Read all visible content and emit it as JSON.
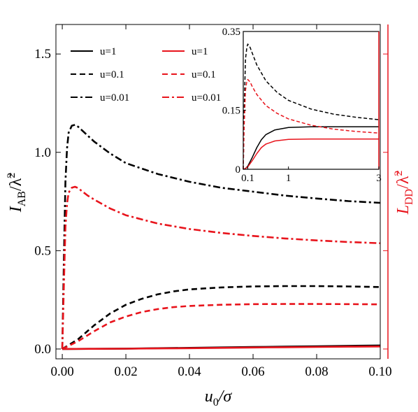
{
  "chart_data": [
    {
      "type": "line",
      "xlabel": "u₀/σ",
      "ylabel_left": "I_AB/λ̃²",
      "ylabel_right": "L_DD/λ̃²",
      "xlim": [
        -0.002,
        0.1
      ],
      "ylim": [
        -0.05,
        1.65
      ],
      "x_ticks": [
        0.0,
        0.02,
        0.04,
        0.06,
        0.08,
        0.1
      ],
      "x_tick_labels": [
        "0.00",
        "0.02",
        "0.04",
        "0.06",
        "0.08",
        "0.10"
      ],
      "y_ticks": [
        0.0,
        0.5,
        1.0,
        1.5
      ],
      "y_tick_labels": [
        "0.0",
        "0.5",
        "1.0",
        "1.5"
      ],
      "grid": false,
      "legend_position": "top-left",
      "legend": [
        {
          "label": "u=1",
          "color": "#000000",
          "dash": "solid"
        },
        {
          "label": "u=0.1",
          "color": "#000000",
          "dash": "dashed"
        },
        {
          "label": "u=0.01",
          "color": "#000000",
          "dash": "dashdot"
        },
        {
          "label": "u=1",
          "color": "#e8141c",
          "dash": "solid"
        },
        {
          "label": "u=0.1",
          "color": "#e8141c",
          "dash": "dashed"
        },
        {
          "label": "u=0.01",
          "color": "#e8141c",
          "dash": "dashdot"
        }
      ],
      "series": [
        {
          "axis": "left",
          "color": "#000000",
          "dash": "solid",
          "x": [
            0.0,
            0.01,
            0.02,
            0.03,
            0.04,
            0.05,
            0.06,
            0.07,
            0.08,
            0.09,
            0.1
          ],
          "y": [
            0.0,
            0.001,
            0.002,
            0.004,
            0.006,
            0.008,
            0.01,
            0.012,
            0.014,
            0.016,
            0.018
          ]
        },
        {
          "axis": "right",
          "color": "#e8141c",
          "dash": "solid",
          "x": [
            0.0,
            0.01,
            0.02,
            0.03,
            0.04,
            0.05,
            0.06,
            0.07,
            0.08,
            0.09,
            0.1
          ],
          "y": [
            0.0,
            0.0007,
            0.0015,
            0.003,
            0.004,
            0.006,
            0.0075,
            0.009,
            0.0105,
            0.012,
            0.013
          ]
        },
        {
          "axis": "left",
          "color": "#000000",
          "dash": "dashed",
          "x": [
            0.0,
            0.005,
            0.01,
            0.015,
            0.02,
            0.025,
            0.03,
            0.035,
            0.04,
            0.05,
            0.06,
            0.07,
            0.08,
            0.09,
            0.1
          ],
          "y": [
            0.0,
            0.05,
            0.12,
            0.18,
            0.225,
            0.255,
            0.278,
            0.293,
            0.303,
            0.313,
            0.318,
            0.32,
            0.32,
            0.318,
            0.315
          ]
        },
        {
          "axis": "right",
          "color": "#e8141c",
          "dash": "dashed",
          "x": [
            0.0,
            0.005,
            0.01,
            0.015,
            0.02,
            0.025,
            0.03,
            0.035,
            0.04,
            0.05,
            0.06,
            0.07,
            0.08,
            0.09,
            0.1
          ],
          "y": [
            0.0,
            0.04,
            0.09,
            0.135,
            0.165,
            0.188,
            0.203,
            0.213,
            0.219,
            0.225,
            0.228,
            0.229,
            0.229,
            0.228,
            0.227
          ]
        },
        {
          "axis": "left",
          "color": "#000000",
          "dash": "dashdot",
          "x": [
            0.0,
            0.0005,
            0.001,
            0.0015,
            0.002,
            0.003,
            0.004,
            0.005,
            0.006,
            0.008,
            0.01,
            0.015,
            0.02,
            0.03,
            0.04,
            0.05,
            0.06,
            0.07,
            0.08,
            0.09,
            0.1
          ],
          "y": [
            0.0,
            0.45,
            0.85,
            1.02,
            1.1,
            1.135,
            1.14,
            1.13,
            1.115,
            1.085,
            1.055,
            0.995,
            0.945,
            0.89,
            0.85,
            0.82,
            0.8,
            0.78,
            0.765,
            0.752,
            0.743
          ]
        },
        {
          "axis": "right",
          "color": "#e8141c",
          "dash": "dashdot",
          "x": [
            0.0,
            0.0005,
            0.001,
            0.0015,
            0.002,
            0.003,
            0.004,
            0.005,
            0.006,
            0.008,
            0.01,
            0.015,
            0.02,
            0.03,
            0.04,
            0.05,
            0.06,
            0.07,
            0.08,
            0.09,
            0.1
          ],
          "y": [
            0.0,
            0.33,
            0.62,
            0.74,
            0.795,
            0.82,
            0.825,
            0.818,
            0.805,
            0.78,
            0.76,
            0.715,
            0.68,
            0.638,
            0.61,
            0.59,
            0.575,
            0.562,
            0.552,
            0.544,
            0.538
          ]
        }
      ]
    },
    {
      "type": "line",
      "role": "inset",
      "xlim": [
        0,
        3
      ],
      "ylim": [
        0,
        0.35
      ],
      "x_ticks": [
        0.1,
        1,
        3
      ],
      "x_tick_labels": [
        "0.1",
        "1",
        "3"
      ],
      "y_ticks": [
        0,
        0.15,
        0.35
      ],
      "y_tick_labels": [
        "0",
        "0.15",
        "0.35"
      ],
      "series": [
        {
          "color": "#000000",
          "dash": "solid",
          "x": [
            0.0,
            0.05,
            0.1,
            0.2,
            0.3,
            0.4,
            0.5,
            0.7,
            1.0,
            1.5,
            2.0,
            2.5,
            3.0
          ],
          "y": [
            0.0,
            0.002,
            0.008,
            0.03,
            0.055,
            0.075,
            0.088,
            0.1,
            0.106,
            0.108,
            0.108,
            0.108,
            0.108
          ]
        },
        {
          "color": "#e8141c",
          "dash": "solid",
          "x": [
            0.0,
            0.05,
            0.1,
            0.2,
            0.3,
            0.4,
            0.5,
            0.7,
            1.0,
            1.5,
            2.0,
            2.5,
            3.0
          ],
          "y": [
            0.0,
            0.002,
            0.006,
            0.022,
            0.04,
            0.055,
            0.064,
            0.072,
            0.076,
            0.077,
            0.077,
            0.077,
            0.077
          ]
        },
        {
          "color": "#000000",
          "dash": "dashed",
          "x": [
            0.0,
            0.02,
            0.05,
            0.08,
            0.1,
            0.15,
            0.2,
            0.3,
            0.5,
            0.75,
            1.0,
            1.5,
            2.0,
            2.5,
            3.0
          ],
          "y": [
            0.0,
            0.15,
            0.28,
            0.31,
            0.318,
            0.31,
            0.295,
            0.265,
            0.225,
            0.195,
            0.175,
            0.153,
            0.14,
            0.132,
            0.126
          ]
        },
        {
          "color": "#e8141c",
          "dash": "dashed",
          "x": [
            0.0,
            0.02,
            0.05,
            0.08,
            0.1,
            0.15,
            0.2,
            0.3,
            0.5,
            0.75,
            1.0,
            1.5,
            2.0,
            2.5,
            3.0
          ],
          "y": [
            0.0,
            0.11,
            0.2,
            0.225,
            0.228,
            0.222,
            0.21,
            0.19,
            0.162,
            0.142,
            0.128,
            0.112,
            0.102,
            0.096,
            0.092
          ]
        }
      ]
    }
  ]
}
